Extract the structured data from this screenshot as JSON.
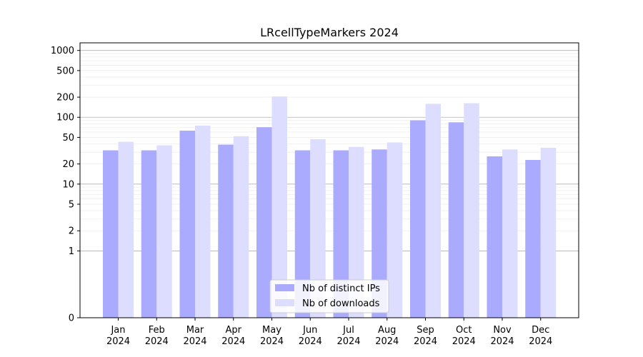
{
  "chart_data": {
    "type": "bar",
    "title": "LRcellTypeMarkers 2024",
    "xlabel": "",
    "ylabel": "",
    "categories": [
      [
        "Jan",
        "2024"
      ],
      [
        "Feb",
        "2024"
      ],
      [
        "Mar",
        "2024"
      ],
      [
        "Apr",
        "2024"
      ],
      [
        "May",
        "2024"
      ],
      [
        "Jun",
        "2024"
      ],
      [
        "Jul",
        "2024"
      ],
      [
        "Aug",
        "2024"
      ],
      [
        "Sep",
        "2024"
      ],
      [
        "Oct",
        "2024"
      ],
      [
        "Nov",
        "2024"
      ],
      [
        "Dec",
        "2024"
      ]
    ],
    "series": [
      {
        "name": "Nb of distinct IPs",
        "color": "#aaaaff",
        "values": [
          32,
          32,
          63,
          39,
          71,
          32,
          32,
          33,
          90,
          84,
          26,
          23
        ]
      },
      {
        "name": "Nb of downloads",
        "color": "#ddddff",
        "values": [
          43,
          38,
          75,
          52,
          205,
          47,
          36,
          42,
          159,
          162,
          33,
          35
        ]
      }
    ],
    "y_scale": "symlog",
    "ylim": [
      0,
      1300
    ],
    "y_ticks": [
      {
        "value": 0,
        "label": "0"
      },
      {
        "value": 1,
        "label": "1"
      },
      {
        "value": 2,
        "label": "2"
      },
      {
        "value": 5,
        "label": "5"
      },
      {
        "value": 10,
        "label": "10"
      },
      {
        "value": 20,
        "label": "20"
      },
      {
        "value": 50,
        "label": "50"
      },
      {
        "value": 100,
        "label": "100"
      },
      {
        "value": 200,
        "label": "200"
      },
      {
        "value": 500,
        "label": "500"
      },
      {
        "value": 1000,
        "label": "1000"
      }
    ],
    "major_grid": [
      1,
      10,
      100,
      1000
    ],
    "grid": true,
    "legend_position": "bottom-center"
  }
}
